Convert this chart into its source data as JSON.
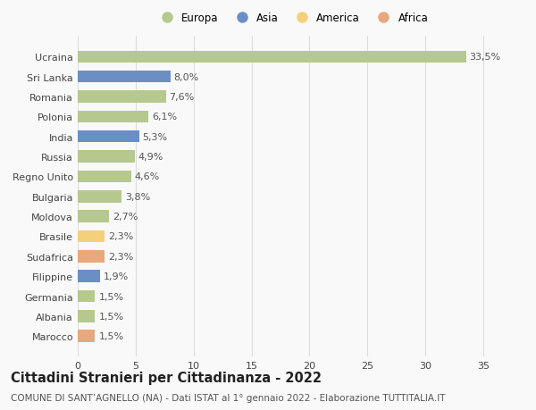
{
  "categories": [
    "Marocco",
    "Albania",
    "Germania",
    "Filippine",
    "Sudafrica",
    "Brasile",
    "Moldova",
    "Bulgaria",
    "Regno Unito",
    "Russia",
    "India",
    "Polonia",
    "Romania",
    "Sri Lanka",
    "Ucraina"
  ],
  "values": [
    1.5,
    1.5,
    1.5,
    1.9,
    2.3,
    2.3,
    2.7,
    3.8,
    4.6,
    4.9,
    5.3,
    6.1,
    7.6,
    8.0,
    33.5
  ],
  "bar_colors": [
    "#e8a87c",
    "#b5c98e",
    "#b5c98e",
    "#6b8fc4",
    "#e8a87c",
    "#f5d07a",
    "#b5c98e",
    "#b5c98e",
    "#b5c98e",
    "#b5c98e",
    "#6b8fc4",
    "#b5c98e",
    "#b5c98e",
    "#6b8fc4",
    "#b5c98e"
  ],
  "labels": [
    "1,5%",
    "1,5%",
    "1,5%",
    "1,9%",
    "2,3%",
    "2,3%",
    "2,7%",
    "3,8%",
    "4,6%",
    "4,9%",
    "5,3%",
    "6,1%",
    "7,6%",
    "8,0%",
    "33,5%"
  ],
  "legend": [
    {
      "label": "Europa",
      "color": "#b5c98e"
    },
    {
      "label": "Asia",
      "color": "#6b8fc4"
    },
    {
      "label": "America",
      "color": "#f5d07a"
    },
    {
      "label": "Africa",
      "color": "#e8a87c"
    }
  ],
  "xlim": [
    0,
    37
  ],
  "xticks": [
    0,
    5,
    10,
    15,
    20,
    25,
    30,
    35
  ],
  "title": "Cittadini Stranieri per Cittadinanza - 2022",
  "subtitle": "COMUNE DI SANT’AGNELLO (NA) - Dati ISTAT al 1° gennaio 2022 - Elaborazione TUTTITALIA.IT",
  "background_color": "#f9f9f9",
  "grid_color": "#dddddd",
  "bar_height": 0.6,
  "label_fontsize": 8,
  "tick_fontsize": 8,
  "title_fontsize": 10.5,
  "subtitle_fontsize": 7.5,
  "legend_fontsize": 8.5
}
